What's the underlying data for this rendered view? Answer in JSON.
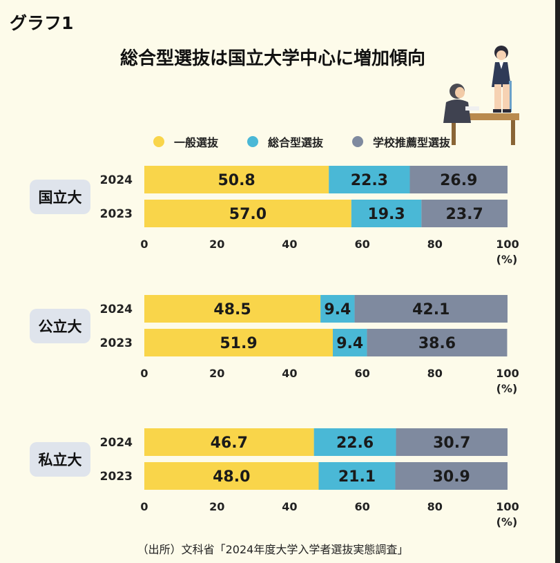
{
  "graph_label": "グラフ1",
  "title": "総合型選抜は国立大学中心に増加傾向",
  "source": "（出所）文科省「2024年度大学入学者選抜実態調査」",
  "colors": {
    "general": "#f9d54a",
    "comprehensive": "#4ab8d6",
    "recommendation": "#7f8a9f",
    "badge": "#dfe4ec"
  },
  "chart_data": [
    {
      "type": "bar",
      "group": "国立大",
      "categories": [
        "2024",
        "2023"
      ],
      "series": [
        {
          "name": "一般選抜",
          "values": [
            50.8,
            57.0
          ],
          "labels": [
            "50.8",
            "57.0"
          ]
        },
        {
          "name": "総合型選抜",
          "values": [
            22.3,
            19.3
          ],
          "labels": [
            "22.3",
            "19.3"
          ]
        },
        {
          "name": "学校推薦型選抜",
          "values": [
            26.9,
            23.7
          ],
          "labels": [
            "26.9",
            "23.7"
          ]
        }
      ],
      "xlim": [
        0,
        100
      ],
      "xticks": [
        "0",
        "20",
        "40",
        "60",
        "80",
        "100"
      ],
      "unit": "(%)",
      "legend": "top"
    },
    {
      "type": "bar",
      "group": "公立大",
      "categories": [
        "2024",
        "2023"
      ],
      "series": [
        {
          "name": "一般選抜",
          "values": [
            48.5,
            51.9
          ],
          "labels": [
            "48.5",
            "51.9"
          ]
        },
        {
          "name": "総合型選抜",
          "values": [
            9.4,
            9.4
          ],
          "labels": [
            "9.4",
            "9.4"
          ]
        },
        {
          "name": "学校推薦型選抜",
          "values": [
            42.1,
            38.6
          ],
          "labels": [
            "42.1",
            "38.6"
          ]
        }
      ],
      "xlim": [
        0,
        100
      ],
      "xticks": [
        "0",
        "20",
        "40",
        "60",
        "80",
        "100"
      ],
      "unit": "(%)"
    },
    {
      "type": "bar",
      "group": "私立大",
      "categories": [
        "2024",
        "2023"
      ],
      "series": [
        {
          "name": "一般選抜",
          "values": [
            46.7,
            48.0
          ],
          "labels": [
            "46.7",
            "48.0"
          ]
        },
        {
          "name": "総合型選抜",
          "values": [
            22.6,
            21.1
          ],
          "labels": [
            "22.6",
            "21.1"
          ]
        },
        {
          "name": "学校推薦型選抜",
          "values": [
            30.7,
            30.9
          ],
          "labels": [
            "30.7",
            "30.9"
          ]
        }
      ],
      "xlim": [
        0,
        100
      ],
      "xticks": [
        "0",
        "20",
        "40",
        "60",
        "80",
        "100"
      ],
      "unit": "(%)"
    }
  ],
  "legend_items": [
    {
      "label": "一般選抜",
      "color_key": "general"
    },
    {
      "label": "総合型選抜",
      "color_key": "comprehensive"
    },
    {
      "label": "学校推薦型選抜",
      "color_key": "recommendation"
    }
  ],
  "illustration": {
    "icon": "interview-illustration"
  }
}
